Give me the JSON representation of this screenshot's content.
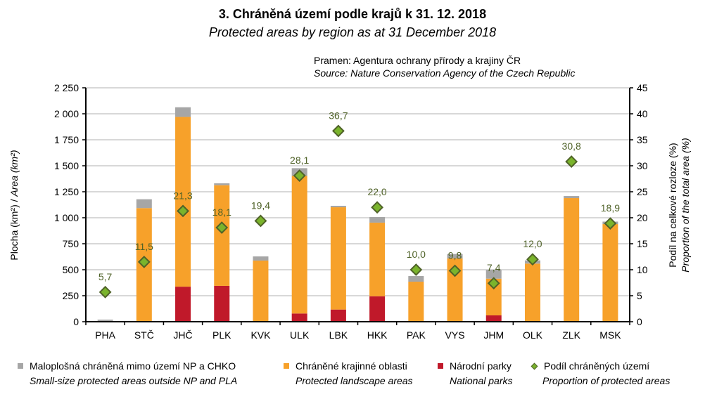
{
  "header": {
    "title": "3. Chráněná území podle krajů k 31. 12. 2018",
    "subtitle": "Protected areas by region as at 31 December 2018",
    "source_cz": "Pramen: Agentura ochrany přírody a krajiny ČR",
    "source_en": "Source: Nature Conservation Agency of the Czech Republic"
  },
  "colors": {
    "small_areas": "#a6a6a6",
    "landscape_areas": "#f7a12a",
    "national_parks": "#c0192a",
    "proportion_fill": "#7ab42c",
    "proportion_stroke": "#4f6228",
    "label_text": "#4f6228",
    "gridline": "#b0b0b0"
  },
  "legend": [
    {
      "key": "small",
      "label_cz": "Maloplošná chráněná mimo území NP a CHKO",
      "label_en": "Small-size protected areas outside NP and PLA"
    },
    {
      "key": "chko",
      "label_cz": "Chráněné krajinné oblasti",
      "label_en": "Protected landscape areas"
    },
    {
      "key": "np",
      "label_cz": "Národní parky",
      "label_en": "National parks"
    },
    {
      "key": "share",
      "label_cz": "Podíl chráněných území",
      "label_en": "Proportion of protected areas"
    }
  ],
  "chart_data": {
    "type": "bar",
    "stacked": true,
    "title": "3. Chráněná území podle krajů k 31. 12. 2018",
    "subtitle": "Protected areas by region as at 31 December 2018",
    "categories": [
      "PHA",
      "STČ",
      "JHČ",
      "PLK",
      "KVK",
      "ULK",
      "LBK",
      "HKK",
      "PAK",
      "VYS",
      "JHM",
      "OLK",
      "ZLK",
      "MSK"
    ],
    "series": [
      {
        "name": "Národní parky / National parks",
        "axis": "left",
        "type": "bar",
        "values": [
          0,
          0,
          337,
          345,
          0,
          79,
          117,
          245,
          0,
          0,
          61,
          0,
          0,
          0
        ]
      },
      {
        "name": "Chráněné krajinné oblasti / Protected landscape areas",
        "axis": "left",
        "type": "bar",
        "values": [
          0,
          1093,
          1633,
          968,
          588,
          1323,
          984,
          708,
          385,
          608,
          353,
          559,
          1189,
          939
        ]
      },
      {
        "name": "Maloplošná chráněná mimo území NP a CHKO / Small-size protected areas outside NP and PLA",
        "axis": "left",
        "type": "bar",
        "values": [
          20,
          85,
          93,
          18,
          40,
          75,
          14,
          54,
          54,
          43,
          84,
          31,
          20,
          24
        ]
      },
      {
        "name": "Podíl chráněných území / Proportion of protected areas",
        "axis": "right",
        "type": "scatter",
        "values": [
          5.7,
          11.5,
          21.3,
          18.1,
          19.4,
          28.1,
          36.7,
          22.0,
          10.0,
          9.8,
          7.4,
          12.0,
          30.8,
          18.9
        ],
        "labels": [
          "5,7",
          "11,5",
          "21,3",
          "18,1",
          "19,4",
          "28,1",
          "36,7",
          "22,0",
          "10,0",
          "9,8",
          "7,4",
          "12,0",
          "30,8",
          "18,9"
        ]
      }
    ],
    "y_left": {
      "label_cz": "Plocha (km²) / ",
      "label_en": "Area (km²)",
      "range": [
        0,
        2250
      ],
      "ticks": [
        0,
        250,
        500,
        750,
        1000,
        1250,
        1500,
        1750,
        2000,
        2250
      ],
      "tick_labels": [
        "0",
        "250",
        "500",
        "750",
        "1 000",
        "1 250",
        "1 500",
        "1 750",
        "2 000",
        "2 250"
      ]
    },
    "y_right": {
      "label_cz": "Podíl na celkové rozloze (%)",
      "label_en": "Proportion of the total area (%)",
      "range": [
        0,
        45
      ],
      "ticks": [
        0,
        5,
        10,
        15,
        20,
        25,
        30,
        35,
        40,
        45
      ],
      "tick_labels": [
        "0",
        "5",
        "10",
        "15",
        "20",
        "25",
        "30",
        "35",
        "40",
        "45"
      ]
    },
    "xlabel": "",
    "grid": true,
    "legend_position": "bottom"
  }
}
